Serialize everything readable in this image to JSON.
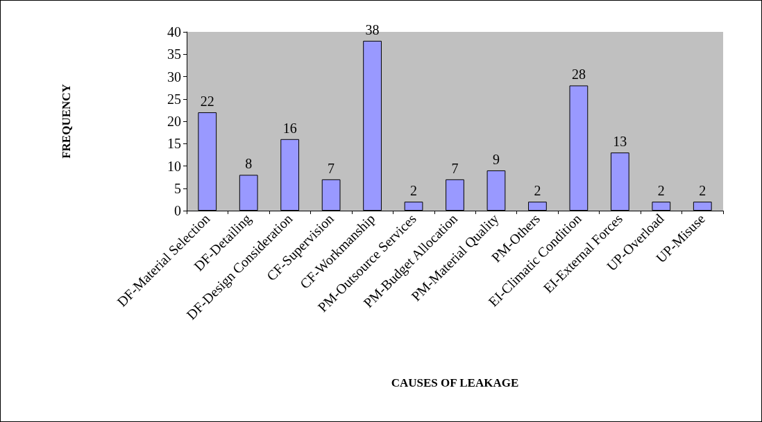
{
  "chart_data": {
    "type": "bar",
    "xlabel": "CAUSES OF LEAKAGE",
    "ylabel": "FREQUENCY",
    "categories": [
      "DF-Material Selection",
      "DF-Detailing",
      "DF-Design Consideration",
      "CF-Supervision",
      "CF-Workmanship",
      "PM-Outsource Services",
      "PM-Budget Allocation",
      "PM-Material Quality",
      "PM-Others",
      "EI-Climatic Condition",
      "EI-External Forces",
      "UP-Overload",
      "UP-Misuse"
    ],
    "values": [
      22,
      8,
      16,
      7,
      38,
      2,
      7,
      9,
      2,
      28,
      13,
      2,
      2
    ],
    "color": "#9999ff",
    "ylim": [
      0,
      40
    ],
    "yticks": [
      0,
      5,
      10,
      15,
      20,
      25,
      30,
      35,
      40
    ],
    "grid": false,
    "data_labels": true
  }
}
